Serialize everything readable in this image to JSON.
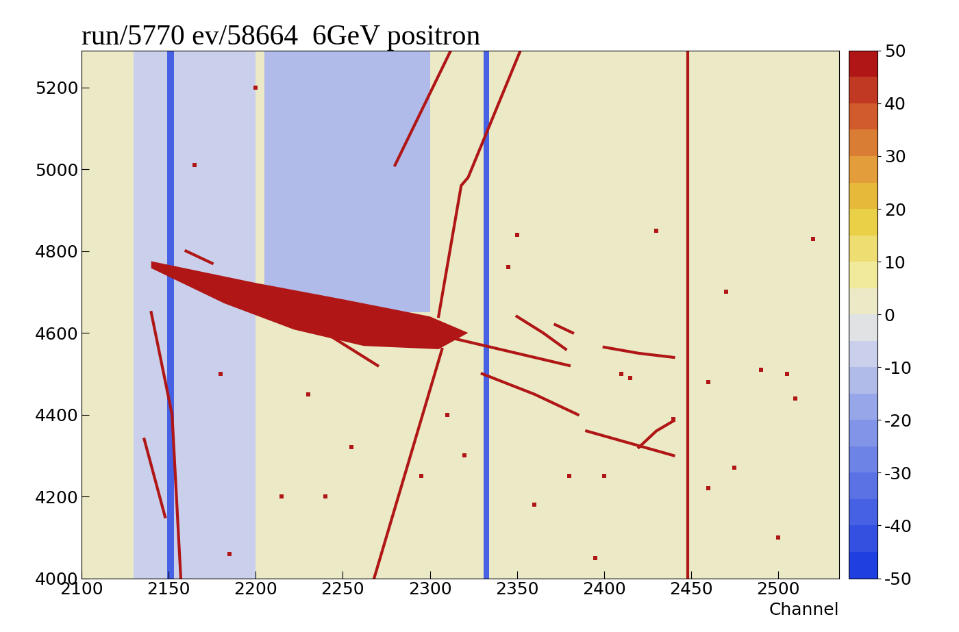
{
  "chart_data": {
    "type": "heatmap",
    "title": "run/5770 ev/58664  6GeV positron",
    "x_label": "Channel",
    "xlim": [
      2100,
      2535
    ],
    "ylim": [
      4000,
      5290
    ],
    "xticks": [
      2100,
      2150,
      2200,
      2250,
      2300,
      2350,
      2400,
      2450,
      2500
    ],
    "yticks": [
      4000,
      4200,
      4400,
      4600,
      4800,
      5000,
      5200
    ],
    "grid": false,
    "colorbar": {
      "range": [
        -50,
        50
      ],
      "ticks": [
        -50,
        -40,
        -30,
        -20,
        -10,
        0,
        10,
        20,
        30,
        40,
        50
      ]
    },
    "background": 4,
    "bands": [
      {
        "x": [
          2130,
          2200
        ],
        "y": [
          4000,
          5290
        ],
        "value": -6
      },
      {
        "x": [
          2205,
          2300
        ],
        "y": [
          4650,
          5290
        ],
        "value": -14
      },
      {
        "x": [
          2149,
          2153
        ],
        "y": [
          4000,
          5290
        ],
        "value": -40
      },
      {
        "x": [
          2331,
          2334
        ],
        "y": [
          4000,
          5290
        ],
        "value": -40
      }
    ],
    "regions": [
      {
        "x": [
          2140,
          2200,
          2250,
          2300,
          2322,
          2305,
          2262,
          2222,
          2182,
          2140
        ],
        "y": [
          4775,
          4722,
          4682,
          4640,
          4600,
          4560,
          4568,
          4608,
          4672,
          4758
        ],
        "value": 50
      }
    ],
    "tracks": [
      {
        "x": [
          2268,
          2307
        ],
        "y": [
          4000,
          4560
        ],
        "value": 50
      },
      {
        "x": [
          2305,
          2318,
          2322,
          2352
        ],
        "y": [
          4640,
          4960,
          4980,
          5290
        ],
        "value": 50
      },
      {
        "x": [
          2280,
          2312
        ],
        "y": [
          5010,
          5290
        ],
        "value": 50
      },
      {
        "x": [
          2140,
          2152,
          2157
        ],
        "y": [
          4650,
          4400,
          4000
        ],
        "value": 50
      },
      {
        "x": [
          2136,
          2148
        ],
        "y": [
          4340,
          4150
        ],
        "value": 50
      },
      {
        "x": [
          2448,
          2448
        ],
        "y": [
          4000,
          5290
        ],
        "value": 50
      },
      {
        "x": [
          2300,
          2340,
          2380
        ],
        "y": [
          4600,
          4560,
          4520
        ],
        "value": 50
      },
      {
        "x": [
          2330,
          2360,
          2385
        ],
        "y": [
          4500,
          4450,
          4400
        ],
        "value": 50
      },
      {
        "x": [
          2400,
          2420,
          2440
        ],
        "y": [
          4565,
          4550,
          4540
        ],
        "value": 50
      },
      {
        "x": [
          2390,
          2415,
          2440
        ],
        "y": [
          4360,
          4330,
          4300
        ],
        "value": 50
      },
      {
        "x": [
          2420,
          2430,
          2440
        ],
        "y": [
          4320,
          4360,
          4385
        ],
        "value": 50
      },
      {
        "x": [
          2350,
          2365,
          2378
        ],
        "y": [
          4640,
          4600,
          4560
        ],
        "value": 50
      },
      {
        "x": [
          2240,
          2270
        ],
        "y": [
          4600,
          4520
        ],
        "value": 50
      },
      {
        "x": [
          2160,
          2175
        ],
        "y": [
          4800,
          4770
        ],
        "value": 50
      },
      {
        "x": [
          2372,
          2382
        ],
        "y": [
          4620,
          4600
        ],
        "value": 50
      }
    ],
    "hits": {
      "x": [
        2165,
        2200,
        2215,
        2240,
        2180,
        2310,
        2360,
        2395,
        2410,
        2430,
        2460,
        2475,
        2490,
        2505,
        2510,
        2520,
        2345,
        2230,
        2320,
        2400,
        2460,
        2470,
        2380,
        2350,
        2415,
        2440,
        2500,
        2295,
        2255,
        2185
      ],
      "y": [
        5010,
        5200,
        4200,
        4200,
        4500,
        4400,
        4180,
        4050,
        4500,
        4850,
        4480,
        4270,
        4510,
        4500,
        4440,
        4830,
        4760,
        4450,
        4300,
        4250,
        4220,
        4700,
        4250,
        4840,
        4490,
        4390,
        4100,
        4250,
        4320,
        4060
      ],
      "value": 50
    }
  }
}
